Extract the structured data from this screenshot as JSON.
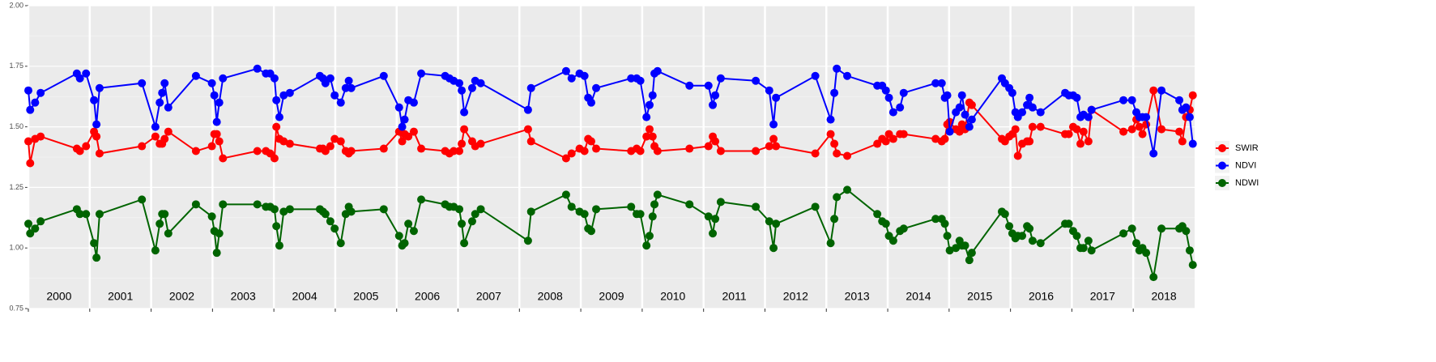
{
  "chart_data": {
    "type": "line",
    "x": [
      2000.0,
      2000.03,
      2000.11,
      2000.2,
      2000.79,
      2000.84,
      2000.94,
      2001.07,
      2001.11,
      2001.16,
      2001.85,
      2002.07,
      2002.14,
      2002.18,
      2002.22,
      2002.28,
      2002.73,
      2002.99,
      2003.03,
      2003.07,
      2003.11,
      2003.17,
      2003.73,
      2003.87,
      2003.94,
      2004.01,
      2004.04,
      2004.09,
      2004.16,
      2004.26,
      2004.75,
      2004.8,
      2004.84,
      2004.92,
      2004.99,
      2005.09,
      2005.17,
      2005.22,
      2005.26,
      2005.79,
      2006.04,
      2006.09,
      2006.13,
      2006.19,
      2006.28,
      2006.4,
      2006.79,
      2006.86,
      2006.93,
      2007.02,
      2007.06,
      2007.1,
      2007.23,
      2007.28,
      2007.37,
      2008.14,
      2008.19,
      2008.76,
      2008.85,
      2008.98,
      2009.06,
      2009.12,
      2009.17,
      2009.25,
      2009.82,
      2009.91,
      2009.97,
      2010.07,
      2010.12,
      2010.17,
      2010.2,
      2010.25,
      2010.77,
      2011.08,
      2011.15,
      2011.19,
      2011.28,
      2011.85,
      2012.07,
      2012.14,
      2012.18,
      2012.82,
      2013.07,
      2013.13,
      2013.17,
      2013.34,
      2013.83,
      2013.91,
      2013.97,
      2014.02,
      2014.09,
      2014.2,
      2014.26,
      2014.78,
      2014.88,
      2014.93,
      2014.97,
      2015.01,
      2015.11,
      2015.17,
      2015.21,
      2015.26,
      2015.33,
      2015.37,
      2015.86,
      2015.91,
      2015.98,
      2016.03,
      2016.08,
      2016.12,
      2016.19,
      2016.27,
      2016.31,
      2016.36,
      2016.49,
      2016.89,
      2016.95,
      2017.02,
      2017.08,
      2017.14,
      2017.19,
      2017.27,
      2017.32,
      2017.84,
      2017.98,
      2018.05,
      2018.1,
      2018.15,
      2018.21,
      2018.33,
      2018.46,
      2018.75,
      2018.8,
      2018.86,
      2018.92,
      2018.97
    ],
    "series": [
      {
        "name": "SWIR",
        "color": "#ff0000",
        "values": [
          1.44,
          1.35,
          1.45,
          1.46,
          1.41,
          1.4,
          1.42,
          1.48,
          1.46,
          1.39,
          1.42,
          1.46,
          1.43,
          1.43,
          1.45,
          1.48,
          1.4,
          1.42,
          1.47,
          1.47,
          1.44,
          1.37,
          1.4,
          1.4,
          1.39,
          1.37,
          1.5,
          1.45,
          1.44,
          1.43,
          1.41,
          1.41,
          1.4,
          1.42,
          1.45,
          1.44,
          1.4,
          1.39,
          1.4,
          1.41,
          1.48,
          1.44,
          1.47,
          1.46,
          1.48,
          1.41,
          1.4,
          1.39,
          1.4,
          1.4,
          1.43,
          1.49,
          1.44,
          1.42,
          1.43,
          1.49,
          1.44,
          1.37,
          1.39,
          1.41,
          1.4,
          1.45,
          1.44,
          1.41,
          1.4,
          1.41,
          1.4,
          1.46,
          1.49,
          1.46,
          1.42,
          1.4,
          1.41,
          1.42,
          1.46,
          1.44,
          1.4,
          1.4,
          1.42,
          1.45,
          1.42,
          1.39,
          1.47,
          1.43,
          1.39,
          1.38,
          1.43,
          1.45,
          1.44,
          1.47,
          1.45,
          1.47,
          1.47,
          1.45,
          1.44,
          1.45,
          1.51,
          1.52,
          1.49,
          1.48,
          1.51,
          1.49,
          1.6,
          1.59,
          1.45,
          1.44,
          1.46,
          1.47,
          1.49,
          1.38,
          1.43,
          1.44,
          1.44,
          1.5,
          1.5,
          1.47,
          1.47,
          1.5,
          1.49,
          1.43,
          1.48,
          1.44,
          1.57,
          1.48,
          1.49,
          1.53,
          1.5,
          1.47,
          1.51,
          1.65,
          1.49,
          1.48,
          1.44,
          1.54,
          1.57,
          1.63
        ]
      },
      {
        "name": "NDVI",
        "color": "#0000ff",
        "values": [
          1.65,
          1.57,
          1.6,
          1.64,
          1.72,
          1.7,
          1.72,
          1.61,
          1.51,
          1.66,
          1.68,
          1.5,
          1.6,
          1.64,
          1.68,
          1.58,
          1.71,
          1.68,
          1.63,
          1.52,
          1.6,
          1.7,
          1.74,
          1.72,
          1.72,
          1.7,
          1.61,
          1.54,
          1.63,
          1.64,
          1.71,
          1.7,
          1.68,
          1.7,
          1.63,
          1.6,
          1.66,
          1.69,
          1.66,
          1.71,
          1.58,
          1.5,
          1.53,
          1.61,
          1.6,
          1.72,
          1.71,
          1.7,
          1.69,
          1.68,
          1.65,
          1.56,
          1.66,
          1.69,
          1.68,
          1.57,
          1.66,
          1.73,
          1.7,
          1.72,
          1.71,
          1.62,
          1.6,
          1.66,
          1.7,
          1.7,
          1.69,
          1.54,
          1.59,
          1.63,
          1.72,
          1.73,
          1.67,
          1.67,
          1.59,
          1.63,
          1.7,
          1.69,
          1.65,
          1.51,
          1.62,
          1.71,
          1.53,
          1.64,
          1.74,
          1.71,
          1.67,
          1.67,
          1.65,
          1.62,
          1.56,
          1.58,
          1.64,
          1.68,
          1.68,
          1.62,
          1.63,
          1.48,
          1.56,
          1.58,
          1.63,
          1.55,
          1.5,
          1.53,
          1.7,
          1.68,
          1.66,
          1.64,
          1.56,
          1.54,
          1.56,
          1.59,
          1.62,
          1.58,
          1.56,
          1.64,
          1.63,
          1.63,
          1.62,
          1.54,
          1.55,
          1.54,
          1.57,
          1.61,
          1.61,
          1.56,
          1.54,
          1.54,
          1.54,
          1.39,
          1.65,
          1.61,
          1.57,
          1.58,
          1.54,
          1.43
        ]
      },
      {
        "name": "NDWI",
        "color": "#006400",
        "values": [
          1.1,
          1.06,
          1.08,
          1.11,
          1.16,
          1.14,
          1.14,
          1.02,
          0.96,
          1.14,
          1.2,
          0.99,
          1.1,
          1.14,
          1.14,
          1.06,
          1.18,
          1.13,
          1.07,
          0.98,
          1.06,
          1.18,
          1.18,
          1.17,
          1.17,
          1.16,
          1.09,
          1.01,
          1.15,
          1.16,
          1.16,
          1.15,
          1.14,
          1.11,
          1.08,
          1.02,
          1.14,
          1.17,
          1.15,
          1.16,
          1.05,
          1.01,
          1.02,
          1.1,
          1.07,
          1.2,
          1.18,
          1.17,
          1.17,
          1.16,
          1.1,
          1.02,
          1.11,
          1.14,
          1.16,
          1.03,
          1.15,
          1.22,
          1.17,
          1.15,
          1.14,
          1.08,
          1.07,
          1.16,
          1.17,
          1.14,
          1.14,
          1.01,
          1.05,
          1.13,
          1.18,
          1.22,
          1.18,
          1.13,
          1.06,
          1.12,
          1.19,
          1.17,
          1.11,
          1.0,
          1.1,
          1.17,
          1.02,
          1.12,
          1.21,
          1.24,
          1.14,
          1.11,
          1.1,
          1.05,
          1.03,
          1.07,
          1.08,
          1.12,
          1.12,
          1.1,
          1.05,
          0.99,
          1.0,
          1.03,
          1.01,
          1.01,
          0.95,
          0.98,
          1.15,
          1.14,
          1.09,
          1.06,
          1.04,
          1.05,
          1.05,
          1.09,
          1.08,
          1.03,
          1.02,
          1.1,
          1.1,
          1.07,
          1.05,
          1.0,
          1.0,
          1.03,
          0.99,
          1.06,
          1.08,
          1.02,
          0.99,
          1.0,
          0.98,
          0.88,
          1.08,
          1.08,
          1.09,
          1.07,
          0.99,
          0.93
        ]
      }
    ],
    "xlim": [
      2000,
      2019
    ],
    "xticks": [
      2000,
      2001,
      2002,
      2003,
      2004,
      2005,
      2006,
      2007,
      2008,
      2009,
      2010,
      2011,
      2012,
      2013,
      2014,
      2015,
      2016,
      2017,
      2018
    ],
    "ylim": [
      0.75,
      2.0
    ],
    "yticks": [
      {
        "value": 0.75,
        "label": "0.75"
      },
      {
        "value": 1.0,
        "label": "1.00"
      },
      {
        "value": 1.25,
        "label": "1.25"
      },
      {
        "value": 1.5,
        "label": "1.50"
      },
      {
        "value": 1.75,
        "label": "1.75"
      },
      {
        "value": 2.0,
        "label": "2.00"
      }
    ],
    "grid": true,
    "legend": "right"
  }
}
